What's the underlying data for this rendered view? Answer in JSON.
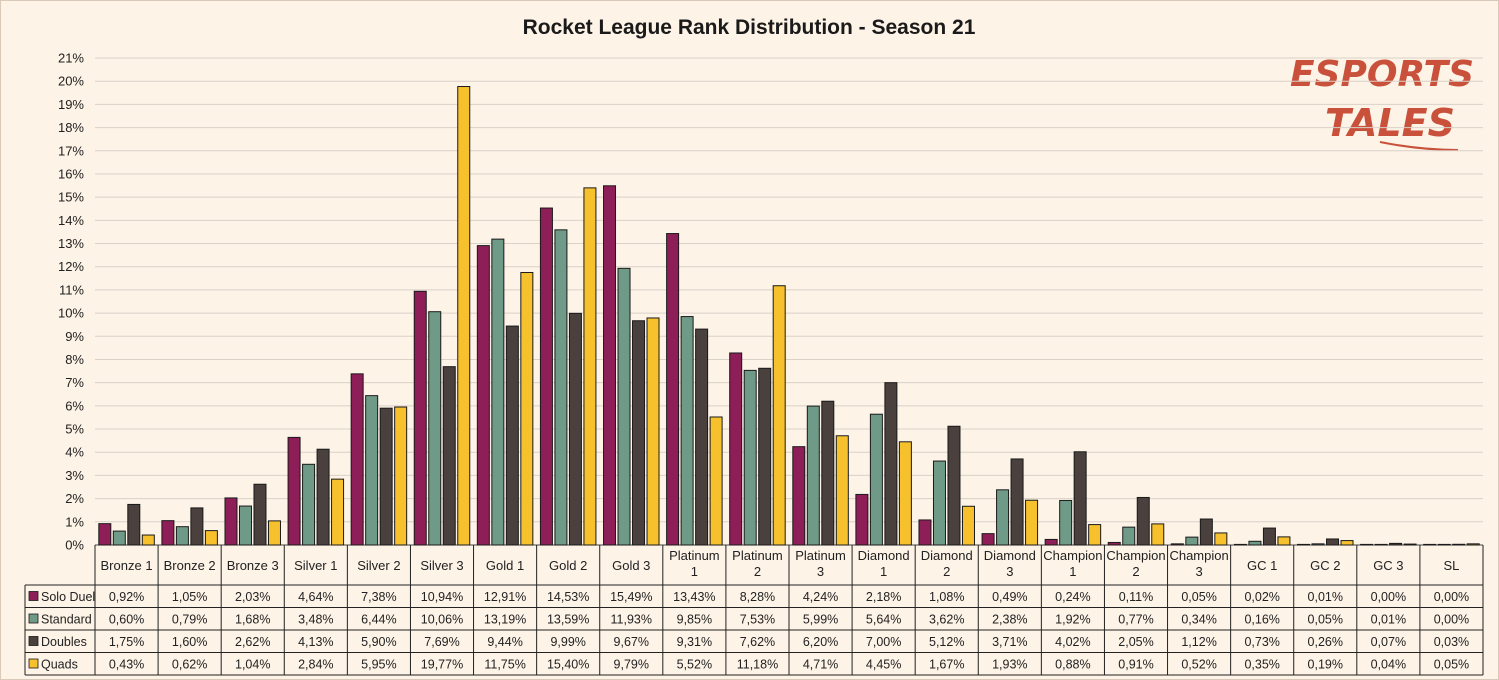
{
  "chart_data": {
    "type": "bar",
    "title": "Rocket League Rank Distribution - Season 21",
    "xlabel": "",
    "ylabel": "",
    "ylim": [
      0,
      21
    ],
    "y_tick_labels": [
      "0%",
      "1%",
      "2%",
      "3%",
      "4%",
      "5%",
      "6%",
      "7%",
      "8%",
      "9%",
      "10%",
      "11%",
      "12%",
      "13%",
      "14%",
      "15%",
      "16%",
      "17%",
      "18%",
      "19%",
      "20%",
      "21%"
    ],
    "grid": true,
    "legend": "data-table",
    "categories": [
      [
        "Bronze 1"
      ],
      [
        "Bronze 2"
      ],
      [
        "Bronze 3"
      ],
      [
        "Silver 1"
      ],
      [
        "Silver 2"
      ],
      [
        "Silver 3"
      ],
      [
        "Gold 1"
      ],
      [
        "Gold 2"
      ],
      [
        "Gold 3"
      ],
      [
        "Platinum",
        "1"
      ],
      [
        "Platinum",
        "2"
      ],
      [
        "Platinum",
        "3"
      ],
      [
        "Diamond",
        "1"
      ],
      [
        "Diamond",
        "2"
      ],
      [
        "Diamond",
        "3"
      ],
      [
        "Champion",
        "1"
      ],
      [
        "Champion",
        "2"
      ],
      [
        "Champion",
        "3"
      ],
      [
        "GC 1"
      ],
      [
        "GC 2"
      ],
      [
        "GC 3"
      ],
      [
        "SL"
      ]
    ],
    "series": [
      {
        "name": "Solo Duel",
        "color": "#8e1e58",
        "values": [
          0.92,
          1.05,
          2.03,
          4.64,
          7.38,
          10.94,
          12.91,
          14.53,
          15.49,
          13.43,
          8.28,
          4.24,
          2.18,
          1.08,
          0.49,
          0.24,
          0.11,
          0.05,
          0.02,
          0.01,
          0.0,
          0.0
        ],
        "labels": [
          "0,92%",
          "1,05%",
          "2,03%",
          "4,64%",
          "7,38%",
          "10,94%",
          "12,91%",
          "14,53%",
          "15,49%",
          "13,43%",
          "8,28%",
          "4,24%",
          "2,18%",
          "1,08%",
          "0,49%",
          "0,24%",
          "0,11%",
          "0,05%",
          "0,02%",
          "0,01%",
          "0,00%",
          "0,00%"
        ]
      },
      {
        "name": "Standard",
        "color": "#6f9a88",
        "values": [
          0.6,
          0.79,
          1.68,
          3.48,
          6.44,
          10.06,
          13.19,
          13.59,
          11.93,
          9.85,
          7.53,
          5.99,
          5.64,
          3.62,
          2.38,
          1.92,
          0.77,
          0.34,
          0.16,
          0.05,
          0.01,
          0.0
        ],
        "labels": [
          "0,60%",
          "0,79%",
          "1,68%",
          "3,48%",
          "6,44%",
          "10,06%",
          "13,19%",
          "13,59%",
          "11,93%",
          "9,85%",
          "7,53%",
          "5,99%",
          "5,64%",
          "3,62%",
          "2,38%",
          "1,92%",
          "0,77%",
          "0,34%",
          "0,16%",
          "0,05%",
          "0,01%",
          "0,00%"
        ]
      },
      {
        "name": "Doubles",
        "color": "#4a403e",
        "values": [
          1.75,
          1.6,
          2.62,
          4.13,
          5.9,
          7.69,
          9.44,
          9.99,
          9.67,
          9.31,
          7.62,
          6.2,
          7.0,
          5.12,
          3.71,
          4.02,
          2.05,
          1.12,
          0.73,
          0.26,
          0.07,
          0.03
        ],
        "labels": [
          "1,75%",
          "1,60%",
          "2,62%",
          "4,13%",
          "5,90%",
          "7,69%",
          "9,44%",
          "9,99%",
          "9,67%",
          "9,31%",
          "7,62%",
          "6,20%",
          "7,00%",
          "5,12%",
          "3,71%",
          "4,02%",
          "2,05%",
          "1,12%",
          "0,73%",
          "0,26%",
          "0,07%",
          "0,03%"
        ]
      },
      {
        "name": "Quads",
        "color": "#f6c12d",
        "values": [
          0.43,
          0.62,
          1.04,
          2.84,
          5.95,
          19.77,
          11.75,
          15.4,
          9.79,
          5.52,
          11.18,
          4.71,
          4.45,
          1.67,
          1.93,
          0.88,
          0.91,
          0.52,
          0.35,
          0.19,
          0.04,
          0.05
        ],
        "labels": [
          "0,43%",
          "0,62%",
          "1,04%",
          "2,84%",
          "5,95%",
          "19,77%",
          "11,75%",
          "15,40%",
          "9,79%",
          "5,52%",
          "11,18%",
          "4,71%",
          "4,45%",
          "1,67%",
          "1,93%",
          "0,88%",
          "0,91%",
          "0,52%",
          "0,35%",
          "0,19%",
          "0,04%",
          "0,05%"
        ]
      }
    ]
  },
  "logo": {
    "line1": "ESPORTS",
    "line2": "TALES",
    "color": "#c9503a"
  },
  "colors": {
    "background": "#fdf3e7",
    "grid": "#d9d2c8",
    "border": "#222222"
  }
}
